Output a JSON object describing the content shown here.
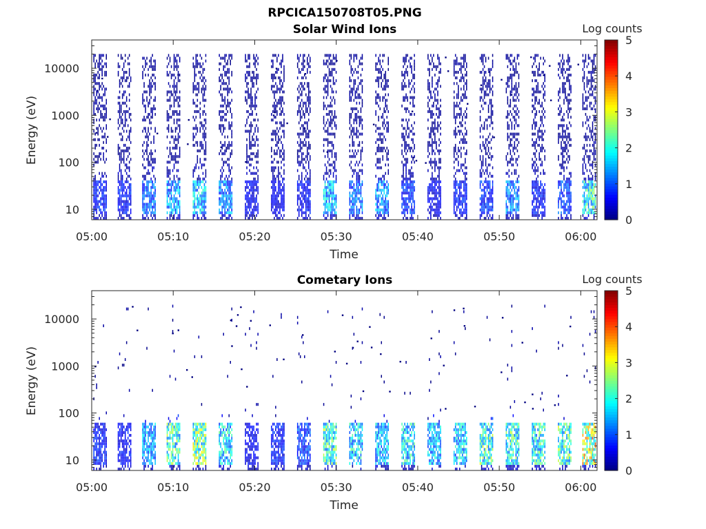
{
  "figure_title": "RPCICA150708T05.PNG",
  "colors": {
    "colormap": [
      "#00007f",
      "#0000ff",
      "#007fff",
      "#00ffff",
      "#7fff7f",
      "#ffff00",
      "#ff7f00",
      "#ff0000",
      "#7f0000"
    ],
    "axis": "#262626"
  },
  "chart_data": [
    {
      "type": "heatmap",
      "title": "Solar Wind Ions",
      "xlabel": "Time",
      "ylabel": "Energy (eV)",
      "x_ticks": [
        "05:00",
        "05:10",
        "05:20",
        "05:30",
        "05:40",
        "05:50",
        "06:00"
      ],
      "x_range_minutes_after_0500": [
        0,
        62
      ],
      "y_scale": "log",
      "y_ticks": [
        "10",
        "100",
        "1000",
        "10000"
      ],
      "y_range_eV": [
        6,
        40000
      ],
      "colorbar": {
        "label": "Log counts",
        "range": [
          0,
          5
        ],
        "ticks": [
          "0",
          "1",
          "2",
          "3",
          "4",
          "5"
        ]
      },
      "sweep_start_minutes": [
        0.2,
        3.2,
        6.2,
        9.2,
        12.4,
        15.6,
        18.8,
        22.0,
        25.2,
        28.4,
        31.6,
        34.8,
        38.0,
        41.2,
        44.4,
        47.6,
        50.8,
        54.0,
        57.2,
        60.2
      ],
      "sweep_peak_log_counts": [
        1.0,
        1.0,
        1.6,
        2.0,
        2.3,
        1.8,
        0.8,
        0.8,
        0.9,
        2.2,
        1.7,
        1.8,
        1.2,
        0.8,
        1.0,
        1.2,
        1.7,
        1.0,
        1.3,
        2.8
      ],
      "dominant_energy_band_eV": [
        8,
        40
      ],
      "sparse_energy_band_eV": [
        100,
        20000
      ]
    },
    {
      "type": "heatmap",
      "title": "Cometary Ions",
      "xlabel": "Time",
      "ylabel": "Energy (eV)",
      "x_ticks": [
        "05:00",
        "05:10",
        "05:20",
        "05:30",
        "05:40",
        "05:50",
        "06:00"
      ],
      "x_range_minutes_after_0500": [
        0,
        62
      ],
      "y_scale": "log",
      "y_ticks": [
        "10",
        "100",
        "1000",
        "10000"
      ],
      "y_range_eV": [
        6,
        40000
      ],
      "colorbar": {
        "label": "Log counts",
        "range": [
          0,
          5
        ],
        "ticks": [
          "0",
          "1",
          "2",
          "3",
          "4",
          "5"
        ]
      },
      "sweep_start_minutes": [
        0.2,
        3.2,
        6.2,
        9.2,
        12.4,
        15.6,
        18.8,
        22.0,
        25.2,
        28.4,
        31.6,
        34.8,
        38.0,
        41.2,
        44.4,
        47.6,
        50.8,
        54.0,
        57.2,
        60.2
      ],
      "sweep_peak_log_counts": [
        1.0,
        0.9,
        2.0,
        3.0,
        3.4,
        2.5,
        0.8,
        1.0,
        1.3,
        3.0,
        2.5,
        2.2,
        2.5,
        2.2,
        2.4,
        3.0,
        2.8,
        2.8,
        3.0,
        4.0
      ],
      "dominant_energy_band_eV": [
        8,
        60
      ],
      "sparse_energy_band_eV": [
        100,
        20000
      ]
    }
  ]
}
